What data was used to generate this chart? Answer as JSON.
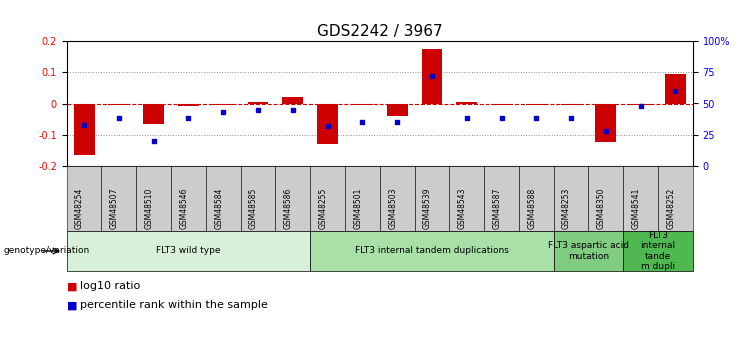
{
  "title": "GDS2242 / 3967",
  "samples": [
    "GSM48254",
    "GSM48507",
    "GSM48510",
    "GSM48546",
    "GSM48584",
    "GSM48585",
    "GSM48586",
    "GSM48255",
    "GSM48501",
    "GSM48503",
    "GSM48539",
    "GSM48543",
    "GSM48587",
    "GSM48588",
    "GSM48253",
    "GSM48350",
    "GSM48541",
    "GSM48252"
  ],
  "log10_ratio": [
    -0.165,
    -0.005,
    -0.065,
    -0.008,
    -0.005,
    0.005,
    0.02,
    -0.13,
    -0.005,
    -0.04,
    0.175,
    0.005,
    -0.005,
    -0.005,
    -0.005,
    -0.125,
    -0.005,
    0.095
  ],
  "percentile_rank": [
    33,
    38,
    20,
    38,
    43,
    45,
    45,
    32,
    35,
    35,
    72,
    38,
    38,
    38,
    38,
    28,
    48,
    60
  ],
  "groups": [
    {
      "label": "FLT3 wild type",
      "start": 0,
      "end": 6,
      "color": "#d8f0d8"
    },
    {
      "label": "FLT3 internal tandem duplications",
      "start": 7,
      "end": 13,
      "color": "#a8e0a8"
    },
    {
      "label": "FLT3 aspartic acid\nmutation",
      "start": 14,
      "end": 15,
      "color": "#80cc80"
    },
    {
      "label": "FLT3\ninternal\ntande\nm dupli",
      "start": 16,
      "end": 17,
      "color": "#50b850"
    }
  ],
  "ylim_left": [
    -0.2,
    0.2
  ],
  "ylim_right": [
    0,
    100
  ],
  "yticks_left": [
    -0.2,
    -0.1,
    0.0,
    0.1,
    0.2
  ],
  "yticks_right": [
    0,
    25,
    50,
    75,
    100
  ],
  "ytick_labels_right": [
    "0",
    "25",
    "50",
    "75",
    "100%"
  ],
  "bar_color": "#cc0000",
  "dot_color": "#0000cc",
  "bg_color": "#ffffff",
  "plot_bg": "#ffffff",
  "grid_color": "#888888",
  "zero_line_color": "#cc0000",
  "sample_box_color": "#cccccc",
  "title_fontsize": 11,
  "tick_fontsize": 7,
  "label_fontsize": 8,
  "legend_fontsize": 8
}
